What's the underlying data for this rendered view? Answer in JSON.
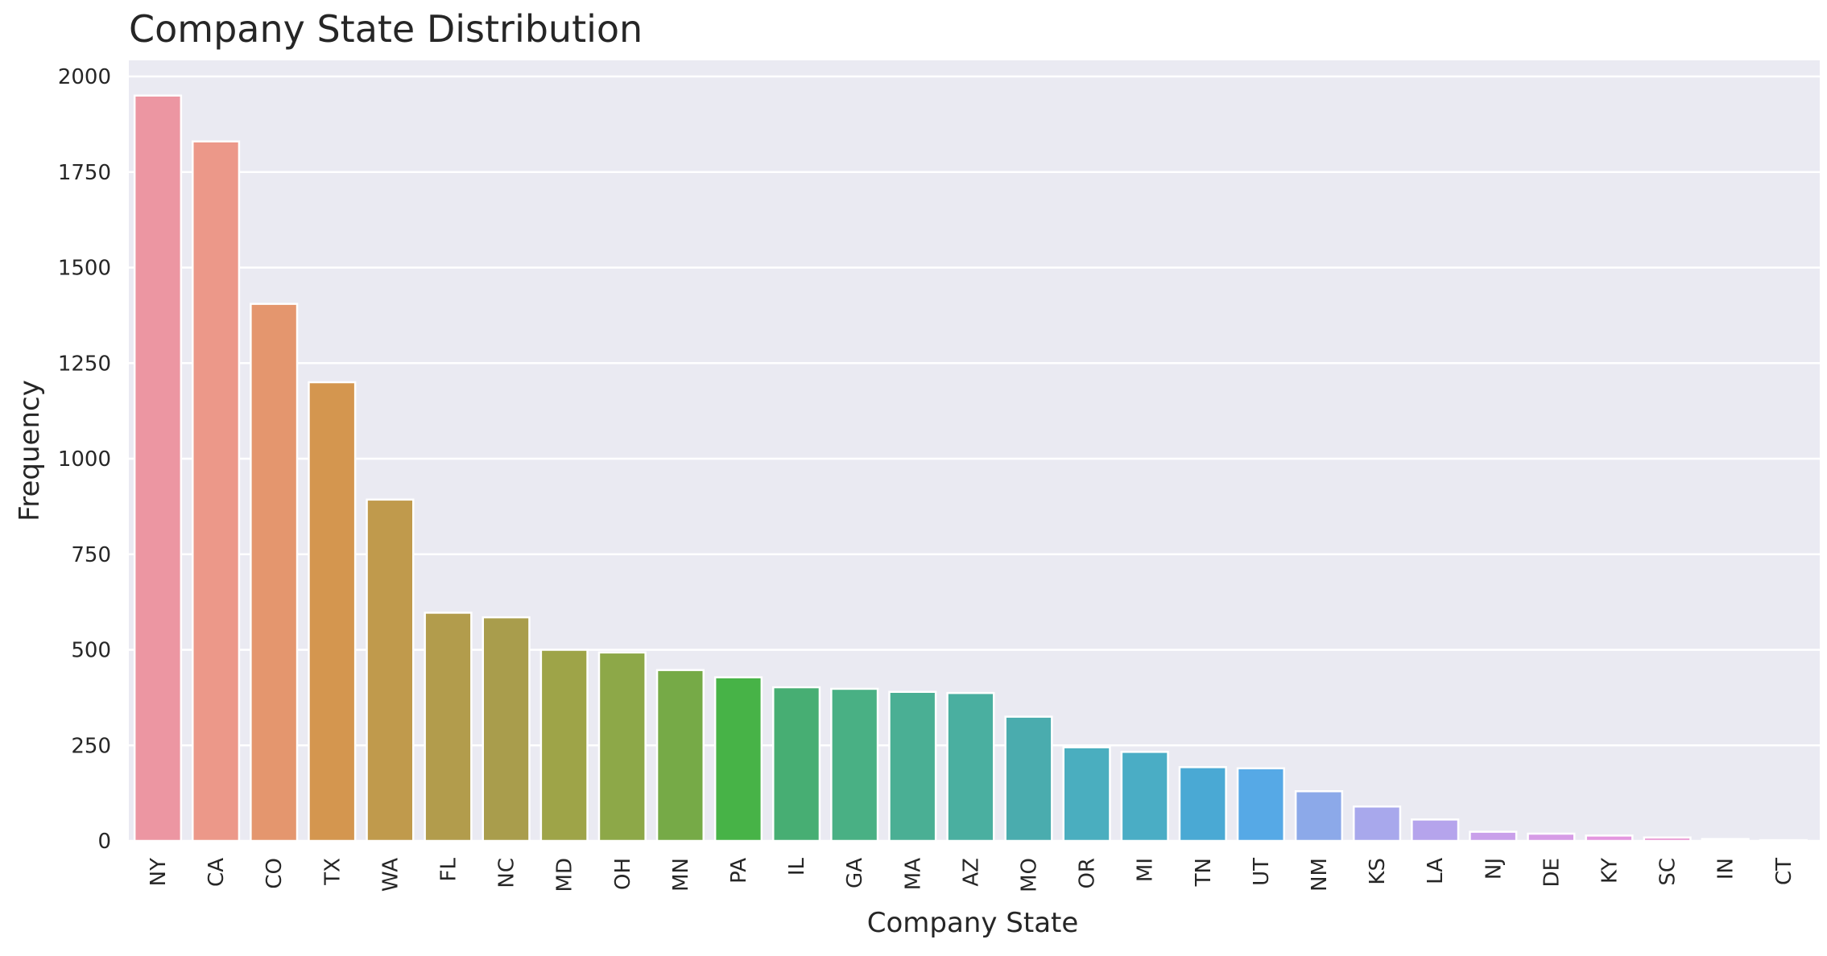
{
  "chart_data": {
    "type": "bar",
    "title": "Company State Distribution",
    "xlabel": "Company State",
    "ylabel": "Frequency",
    "ylim": [
      0,
      2050
    ],
    "yticks": [
      0,
      250,
      500,
      750,
      1000,
      1250,
      1500,
      1750,
      2000
    ],
    "grid": true,
    "categories": [
      "NY",
      "CA",
      "CO",
      "TX",
      "WA",
      "FL",
      "NC",
      "MD",
      "OH",
      "MN",
      "PA",
      "IL",
      "GA",
      "MA",
      "AZ",
      "MO",
      "OR",
      "MI",
      "TN",
      "UT",
      "NM",
      "KS",
      "LA",
      "NJ",
      "DE",
      "KY",
      "SC",
      "IN",
      "CT"
    ],
    "values": [
      1950,
      1830,
      1405,
      1200,
      893,
      597,
      585,
      500,
      493,
      447,
      428,
      402,
      398,
      390,
      387,
      325,
      245,
      233,
      193,
      190,
      130,
      90,
      56,
      24,
      19,
      14,
      9,
      5,
      2
    ],
    "colors": [
      "#ec96a2",
      "#ec9889",
      "#e4966e",
      "#d4964f",
      "#c09a4c",
      "#b29c4c",
      "#a99d4c",
      "#9ea448",
      "#8da848",
      "#76aa47",
      "#47b347",
      "#47ae73",
      "#49b084",
      "#4aaf94",
      "#4aafa0",
      "#4aacae",
      "#4aaebf",
      "#4aadc5",
      "#4aa9d4",
      "#56a9e6",
      "#8ca9e9",
      "#a8a8ec",
      "#b5a4ec",
      "#c9a0ea",
      "#d69ce6",
      "#e396df",
      "#e897d2",
      "#e998c5",
      "#eb98b4"
    ]
  }
}
